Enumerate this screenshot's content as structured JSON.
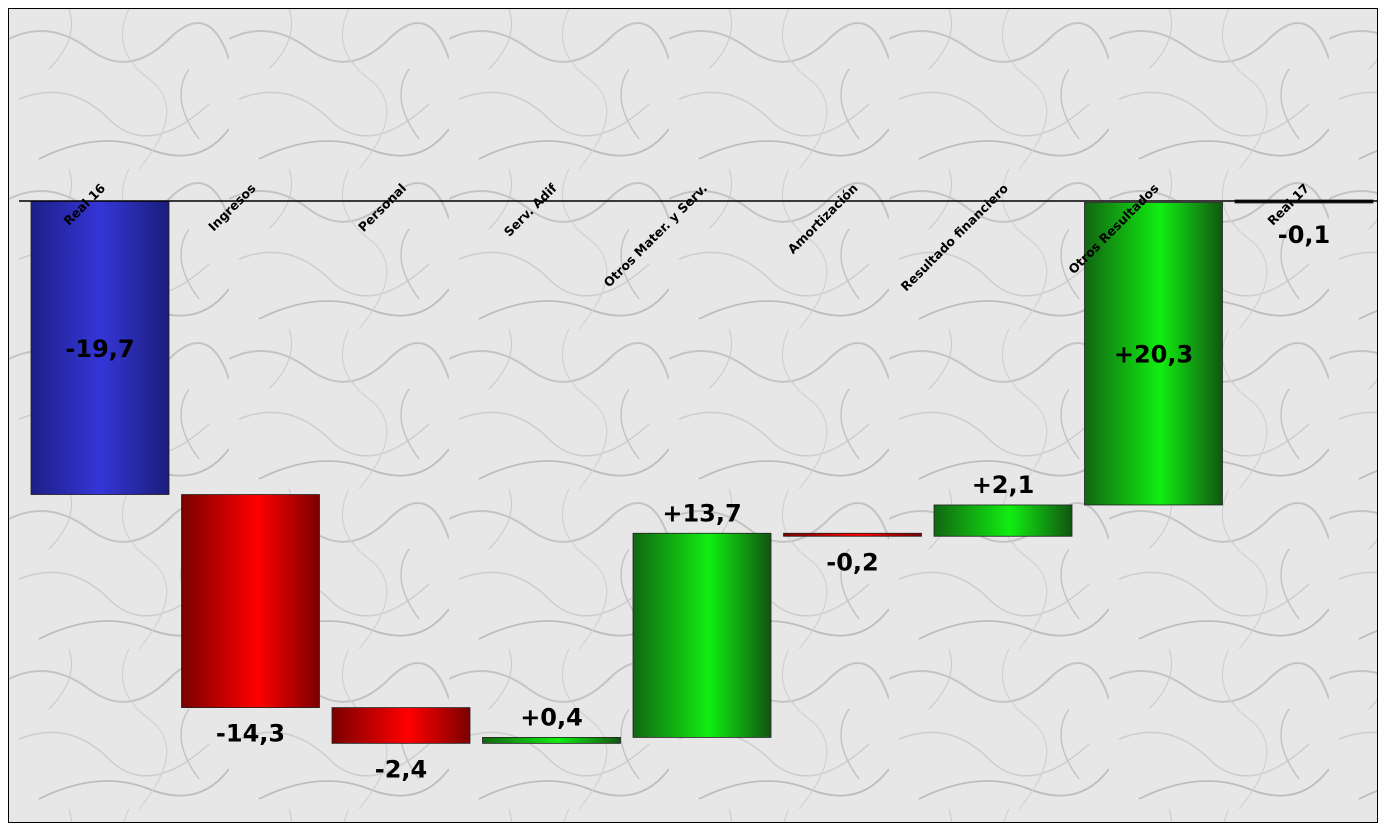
{
  "chart_data": {
    "type": "bar",
    "subtype": "waterfall",
    "categories": [
      "Real 16",
      "Ingresos",
      "Personal",
      "Serv. Adif",
      "Otros Mater. y Serv.",
      "Amortización",
      "Resultado financiero",
      "Otros Resultados",
      "Real 17"
    ],
    "values": [
      -19.7,
      -14.3,
      -2.4,
      0.4,
      13.7,
      -0.2,
      2.1,
      20.3,
      -0.1
    ],
    "value_labels": [
      "-19,7",
      "-14,3",
      "-2,4",
      "+0,4",
      "+13,7",
      "-0,2",
      "+2,1",
      "+20,3",
      "-0,1"
    ],
    "kinds": [
      "total",
      "delta",
      "delta",
      "delta",
      "delta",
      "delta",
      "delta",
      "delta",
      "total"
    ],
    "x_axis_position": "top",
    "grid": false,
    "legend": "none",
    "colors": {
      "total": "#2b2fc9",
      "negative": "#ff0000",
      "positive": "#00ee00",
      "final_label": "#1f6fd0"
    }
  }
}
